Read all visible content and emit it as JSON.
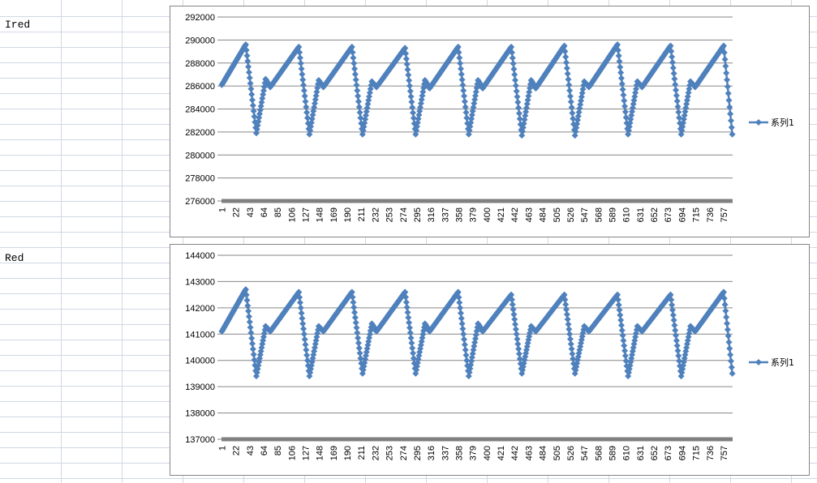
{
  "sheet": {
    "labels": [
      "Ired",
      "Red"
    ]
  },
  "chart_data": [
    {
      "type": "line",
      "title": "",
      "legend": {
        "entries": [
          "系列1"
        ],
        "placement": "right"
      },
      "series_color": "#4f81bd",
      "ylim": [
        276000,
        292000
      ],
      "y_ticks": [
        "276000",
        "278000",
        "280000",
        "282000",
        "284000",
        "286000",
        "288000",
        "290000",
        "292000"
      ],
      "x_count": 770,
      "x_tick_labels": [
        "1",
        "22",
        "43",
        "64",
        "85",
        "106",
        "127",
        "148",
        "169",
        "190",
        "211",
        "232",
        "253",
        "274",
        "295",
        "316",
        "337",
        "358",
        "379",
        "400",
        "421",
        "442",
        "463",
        "484",
        "505",
        "526",
        "547",
        "568",
        "589",
        "610",
        "631",
        "652",
        "673",
        "694",
        "715",
        "736",
        "757"
      ],
      "series": [
        {
          "name": "系列1",
          "keypoints_x": [
            1,
            37,
            53,
            67,
            74,
            117,
            133,
            147,
            154,
            197,
            213,
            227,
            234,
            277,
            293,
            307,
            314,
            357,
            373,
            387,
            394,
            437,
            453,
            467,
            474,
            517,
            533,
            547,
            554,
            597,
            613,
            627,
            634,
            677,
            693,
            707,
            714,
            757,
            770
          ],
          "keypoints_y": [
            286100,
            289600,
            281900,
            286600,
            285900,
            289400,
            281800,
            286500,
            285900,
            289400,
            281800,
            286400,
            285900,
            289300,
            281800,
            286500,
            285800,
            289400,
            281800,
            286500,
            285800,
            289400,
            281700,
            286500,
            285800,
            289500,
            281700,
            286400,
            285900,
            289600,
            281800,
            286400,
            285900,
            289500,
            281800,
            286400,
            285900,
            289500,
            281800
          ]
        }
      ]
    },
    {
      "type": "line",
      "title": "",
      "legend": {
        "entries": [
          "系列1"
        ],
        "placement": "right"
      },
      "series_color": "#4f81bd",
      "ylim": [
        137000,
        144000
      ],
      "y_ticks": [
        "137000",
        "138000",
        "139000",
        "140000",
        "141000",
        "142000",
        "143000",
        "144000"
      ],
      "x_count": 770,
      "x_tick_labels": [
        "1",
        "22",
        "43",
        "64",
        "85",
        "106",
        "127",
        "148",
        "169",
        "190",
        "211",
        "232",
        "253",
        "274",
        "295",
        "316",
        "337",
        "358",
        "379",
        "400",
        "421",
        "442",
        "463",
        "484",
        "505",
        "526",
        "547",
        "568",
        "589",
        "610",
        "631",
        "652",
        "673",
        "694",
        "715",
        "736",
        "757"
      ],
      "series": [
        {
          "name": "系列1",
          "keypoints_x": [
            1,
            37,
            53,
            67,
            74,
            117,
            133,
            147,
            154,
            197,
            213,
            227,
            234,
            277,
            293,
            307,
            314,
            357,
            373,
            387,
            394,
            437,
            453,
            467,
            474,
            517,
            533,
            547,
            554,
            597,
            613,
            627,
            634,
            677,
            693,
            707,
            714,
            757,
            770
          ],
          "keypoints_y": [
            141100,
            142700,
            139400,
            141300,
            141100,
            142600,
            139400,
            141300,
            141100,
            142600,
            139500,
            141400,
            141100,
            142600,
            139500,
            141400,
            141100,
            142600,
            139400,
            141400,
            141100,
            142500,
            139500,
            141300,
            141100,
            142500,
            139500,
            141300,
            141100,
            142500,
            139400,
            141300,
            141100,
            142500,
            139400,
            141300,
            141100,
            142600,
            139500
          ]
        }
      ]
    }
  ]
}
